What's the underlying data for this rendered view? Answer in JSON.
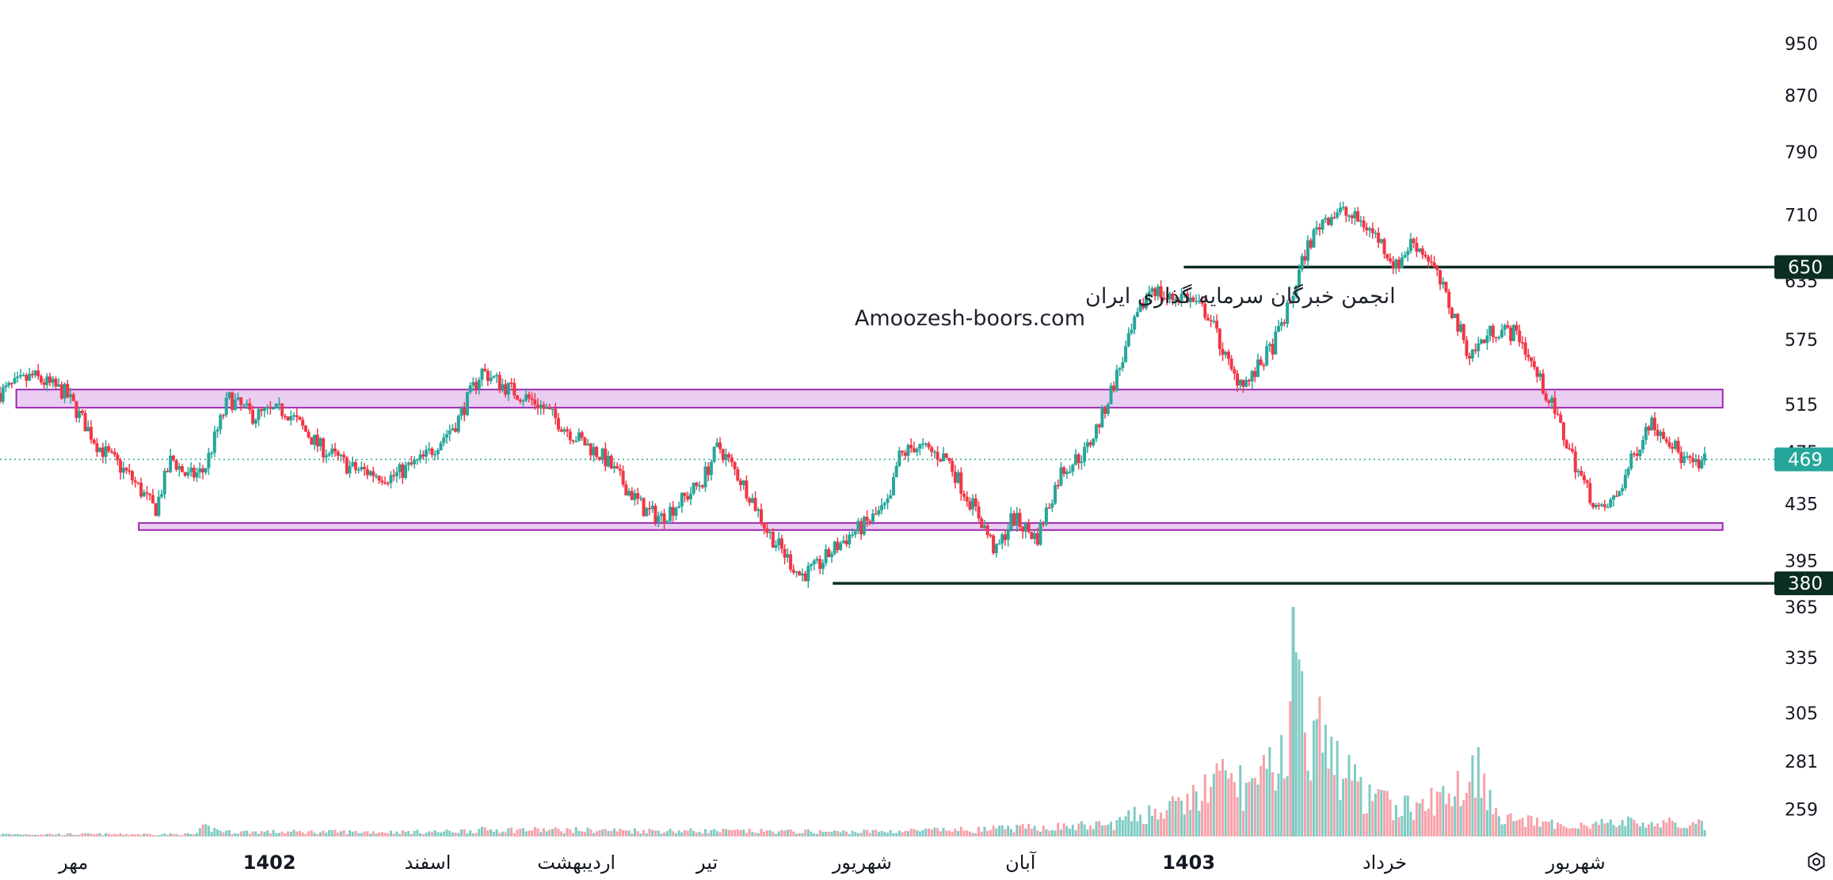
{
  "watermark": {
    "line1": "انجمن خبرگان سرمایه گذاری ایران",
    "line2": "Amoozesh-boors.com"
  },
  "colors": {
    "up": "#26a69a",
    "down": "#f23645",
    "volume_up": "#80cbc4",
    "volume_down": "#f7a1a8",
    "zone_fill": "#e6c6ee",
    "zone_stroke": "#9c27b0",
    "level_line": "#0b2e24",
    "level_tag": "#0b2e24",
    "last_price_tag": "#26a69a",
    "axis_text": "#131722"
  },
  "bottom_icon": "settings-icon",
  "chart_data": {
    "type": "candlestick",
    "y_axis": {
      "position": "right",
      "scale": "log",
      "ticks": [
        950,
        870,
        790,
        710,
        635,
        575,
        515,
        475,
        435,
        395,
        365,
        335,
        305,
        281,
        259
      ],
      "range": [
        253,
        985
      ]
    },
    "x_axis": {
      "labels": [
        {
          "text": "مهر",
          "pos": 0.045,
          "bold": false
        },
        {
          "text": "1402",
          "pos": 0.165,
          "bold": true
        },
        {
          "text": "اسفند",
          "pos": 0.262,
          "bold": false
        },
        {
          "text": "اردیبهشت",
          "pos": 0.353,
          "bold": false
        },
        {
          "text": "تیر",
          "pos": 0.433,
          "bold": false
        },
        {
          "text": "شهریور",
          "pos": 0.528,
          "bold": false
        },
        {
          "text": "آبان",
          "pos": 0.625,
          "bold": false
        },
        {
          "text": "1403",
          "pos": 0.728,
          "bold": true
        },
        {
          "text": "خرداد",
          "pos": 0.848,
          "bold": false
        },
        {
          "text": "شهریور",
          "pos": 0.965,
          "bold": false
        }
      ]
    },
    "price_path": [
      [
        0.0,
        525
      ],
      [
        0.02,
        540
      ],
      [
        0.04,
        525
      ],
      [
        0.06,
        480
      ],
      [
        0.08,
        455
      ],
      [
        0.095,
        430
      ],
      [
        0.105,
        470
      ],
      [
        0.115,
        455
      ],
      [
        0.125,
        460
      ],
      [
        0.14,
        520
      ],
      [
        0.155,
        505
      ],
      [
        0.175,
        510
      ],
      [
        0.195,
        480
      ],
      [
        0.215,
        462
      ],
      [
        0.24,
        455
      ],
      [
        0.26,
        470
      ],
      [
        0.28,
        500
      ],
      [
        0.295,
        545
      ],
      [
        0.31,
        530
      ],
      [
        0.33,
        515
      ],
      [
        0.35,
        490
      ],
      [
        0.37,
        470
      ],
      [
        0.385,
        445
      ],
      [
        0.395,
        430
      ],
      [
        0.405,
        425
      ],
      [
        0.42,
        440
      ],
      [
        0.43,
        452
      ],
      [
        0.44,
        480
      ],
      [
        0.45,
        460
      ],
      [
        0.46,
        440
      ],
      [
        0.47,
        415
      ],
      [
        0.48,
        400
      ],
      [
        0.49,
        385
      ],
      [
        0.5,
        390
      ],
      [
        0.51,
        402
      ],
      [
        0.52,
        412
      ],
      [
        0.53,
        420
      ],
      [
        0.545,
        435
      ],
      [
        0.55,
        470
      ],
      [
        0.56,
        480
      ],
      [
        0.57,
        475
      ],
      [
        0.58,
        470
      ],
      [
        0.59,
        445
      ],
      [
        0.6,
        425
      ],
      [
        0.61,
        400
      ],
      [
        0.62,
        425
      ],
      [
        0.635,
        410
      ],
      [
        0.65,
        460
      ],
      [
        0.665,
        475
      ],
      [
        0.675,
        505
      ],
      [
        0.685,
        545
      ],
      [
        0.695,
        590
      ],
      [
        0.705,
        630
      ],
      [
        0.715,
        615
      ],
      [
        0.725,
        620
      ],
      [
        0.74,
        600
      ],
      [
        0.755,
        540
      ],
      [
        0.765,
        535
      ],
      [
        0.78,
        570
      ],
      [
        0.79,
        610
      ],
      [
        0.8,
        670
      ],
      [
        0.81,
        705
      ],
      [
        0.82,
        715
      ],
      [
        0.835,
        700
      ],
      [
        0.845,
        680
      ],
      [
        0.855,
        650
      ],
      [
        0.865,
        680
      ],
      [
        0.875,
        660
      ],
      [
        0.885,
        620
      ],
      [
        0.9,
        560
      ],
      [
        0.915,
        585
      ],
      [
        0.93,
        580
      ],
      [
        0.94,
        545
      ],
      [
        0.95,
        515
      ],
      [
        0.96,
        480
      ],
      [
        0.97,
        450
      ],
      [
        0.98,
        428
      ],
      [
        0.99,
        440
      ],
      [
        1.0,
        470
      ],
      [
        1.01,
        500
      ],
      [
        1.02,
        490
      ],
      [
        1.03,
        470
      ],
      [
        1.04,
        462
      ],
      [
        1.045,
        469
      ]
    ],
    "volume_path": [
      [
        0.0,
        0.01
      ],
      [
        0.12,
        0.01
      ],
      [
        0.125,
        0.04
      ],
      [
        0.14,
        0.02
      ],
      [
        0.27,
        0.02
      ],
      [
        0.3,
        0.03
      ],
      [
        0.52,
        0.02
      ],
      [
        0.6,
        0.03
      ],
      [
        0.68,
        0.05
      ],
      [
        0.7,
        0.1
      ],
      [
        0.72,
        0.12
      ],
      [
        0.75,
        0.25
      ],
      [
        0.77,
        0.2
      ],
      [
        0.785,
        0.35
      ],
      [
        0.795,
        0.6
      ],
      [
        0.805,
        0.45
      ],
      [
        0.82,
        0.3
      ],
      [
        0.84,
        0.15
      ],
      [
        0.87,
        0.12
      ],
      [
        0.89,
        0.2
      ],
      [
        0.905,
        0.3
      ],
      [
        0.92,
        0.08
      ],
      [
        0.95,
        0.05
      ],
      [
        1.0,
        0.06
      ],
      [
        1.045,
        0.05
      ]
    ],
    "volume_spike": {
      "pos": 0.792,
      "height": 1.0
    },
    "zones": [
      {
        "from": 0.01,
        "to": 1.055,
        "low": 512,
        "high": 528
      },
      {
        "from": 0.085,
        "to": 1.055,
        "low": 416,
        "high": 421
      }
    ],
    "levels": [
      {
        "value": 650,
        "from": 0.725,
        "label": "650"
      },
      {
        "value": 380,
        "from": 0.51,
        "label": "380"
      }
    ],
    "last_price": {
      "value": 469,
      "label": "469"
    }
  }
}
